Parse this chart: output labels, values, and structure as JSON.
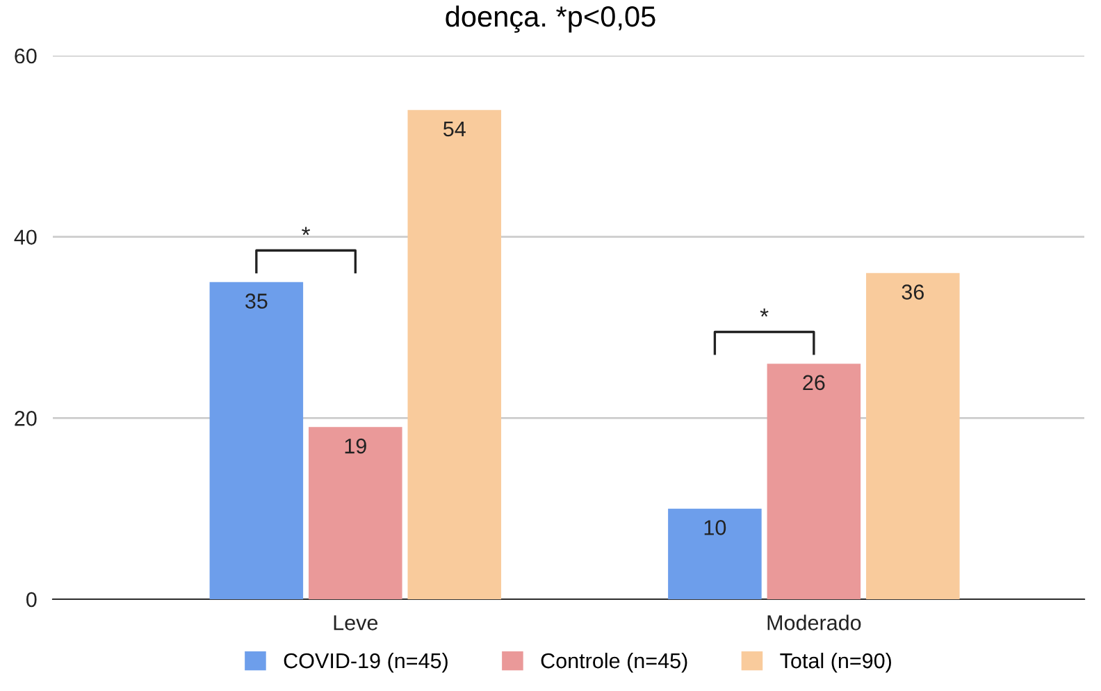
{
  "chart_data": {
    "type": "bar",
    "title": "doença. *p<0,05",
    "categories": [
      "Leve",
      "Moderado"
    ],
    "series": [
      {
        "name": "COVID-19 (n=45)",
        "color": "#6d9eeb",
        "values": [
          35,
          10
        ]
      },
      {
        "name": "Controle (n=45)",
        "color": "#ea9999",
        "values": [
          19,
          26
        ]
      },
      {
        "name": "Total (n=90)",
        "color": "#f9cb9c",
        "values": [
          54,
          36
        ]
      }
    ],
    "annotations": [
      "*",
      "*"
    ],
    "ylim": [
      0,
      60
    ],
    "yticks": [
      0,
      20,
      40,
      60
    ],
    "grid": "y",
    "legend": "bottom",
    "data_labels": true
  }
}
